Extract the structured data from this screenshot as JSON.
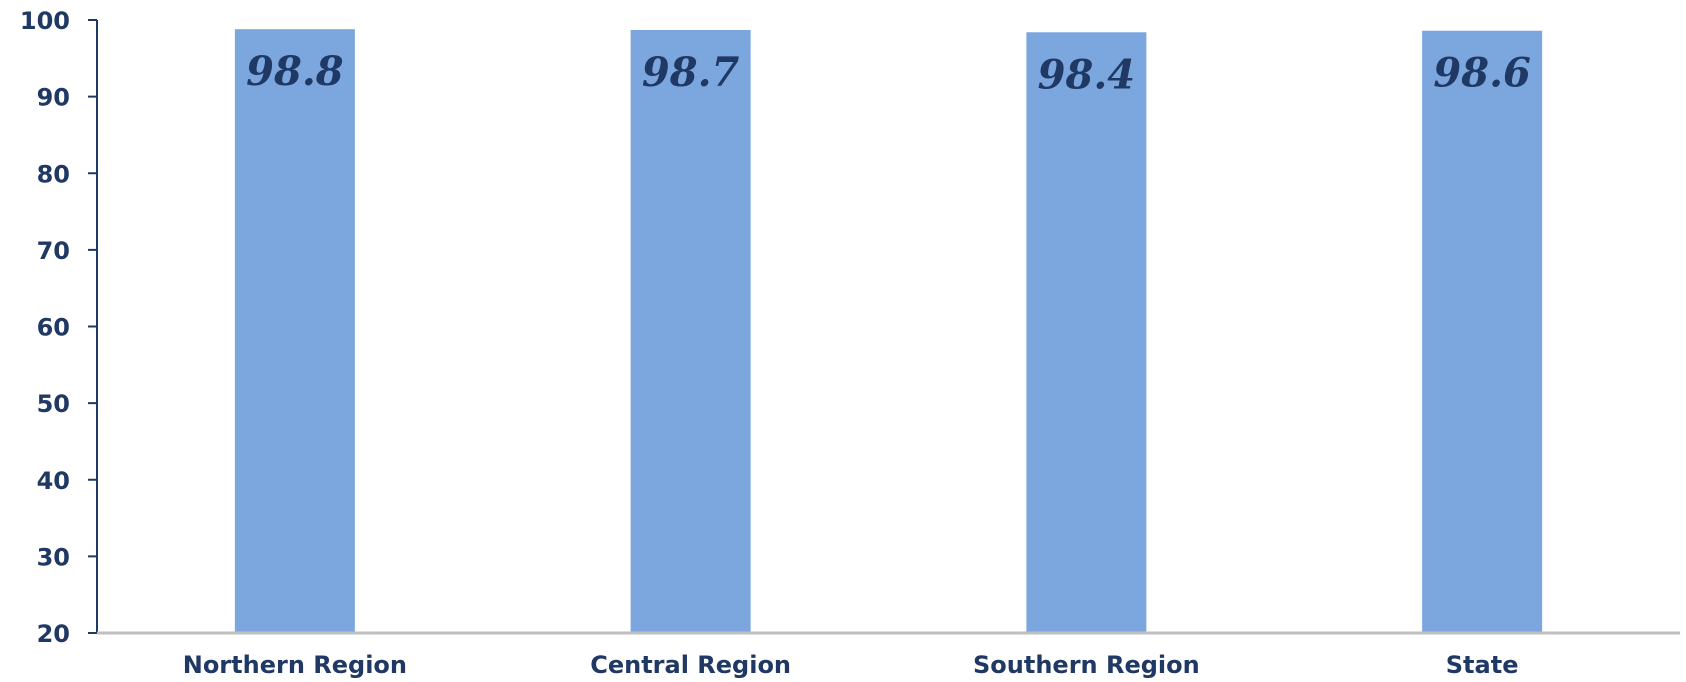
{
  "chart_data": {
    "type": "bar",
    "categories": [
      "Northern Region",
      "Central Region",
      "Southern Region",
      "State"
    ],
    "values": [
      98.8,
      98.7,
      98.4,
      98.6
    ],
    "data_labels": [
      "98.8",
      "98.7",
      "98.4",
      "98.6"
    ],
    "title": "",
    "xlabel": "",
    "ylabel": "",
    "ylim": [
      20,
      100
    ],
    "yticks": [
      20,
      30,
      40,
      50,
      60,
      70,
      80,
      90,
      100
    ],
    "grid": false,
    "legend": "none",
    "bar_color": "#7ba7de",
    "text_color": "#1f3864",
    "axis_color": "#1f3864",
    "baseline_color": "#bfbfbf"
  }
}
